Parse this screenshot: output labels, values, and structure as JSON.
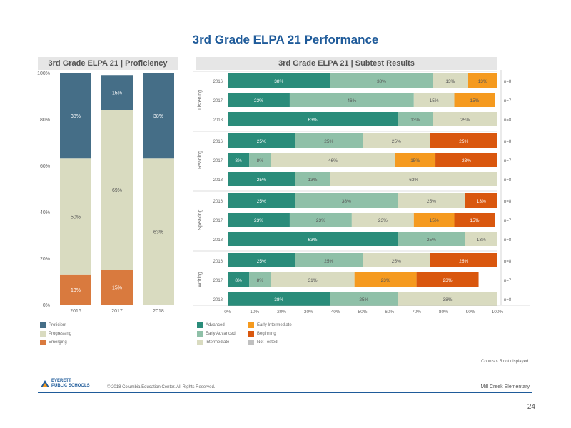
{
  "page": {
    "title": "3rd Grade ELPA 21 Performance",
    "page_number": "24",
    "counts_note": "Counts < 5 not displayed.",
    "copyright": "© 2018 Columbia Education Center. All Rights Reserved.",
    "school": "Mill Creek Elementary",
    "logo_line1": "EVERETT",
    "logo_line2": "PUBLIC SCHOOLS"
  },
  "colors": {
    "proficient": "#456e87",
    "progressing": "#d9dbc0",
    "emerging": "#d97a3e",
    "advanced": "#2a8c7a",
    "early_advanced": "#8fc0a8",
    "intermediate": "#d9dbc0",
    "early_intermediate": "#f59a1f",
    "beginning": "#d9570e",
    "not_tested": "#c0c0c0"
  },
  "left": {
    "title": "3rd Grade ELPA 21 | Proficiency",
    "legend": [
      "Proficient",
      "Progressing",
      "Emerging"
    ]
  },
  "right": {
    "title": "3rd Grade ELPA 21 | Subtest Results",
    "legend": [
      "Advanced",
      "Early Advanced",
      "Intermediate",
      "Early Intermediate",
      "Beginning",
      "Not Tested"
    ]
  },
  "chart_data": [
    {
      "type": "bar",
      "title": "3rd Grade ELPA 21 | Proficiency",
      "categories": [
        "2016",
        "2017",
        "2018"
      ],
      "ylim": [
        0,
        100
      ],
      "yticks": [
        "0%",
        "20%",
        "40%",
        "60%",
        "80%",
        "100%"
      ],
      "series": [
        {
          "name": "Emerging",
          "values": [
            13,
            15,
            0
          ],
          "labels": [
            "13%",
            "15%",
            ""
          ]
        },
        {
          "name": "Progressing",
          "values": [
            50,
            69,
            63
          ],
          "labels": [
            "50%",
            "69%",
            "63%"
          ]
        },
        {
          "name": "Proficient",
          "values": [
            38,
            15,
            38
          ],
          "labels": [
            "38%",
            "15%",
            "38%"
          ]
        }
      ]
    },
    {
      "type": "bar",
      "orientation": "horizontal",
      "title": "3rd Grade ELPA 21 | Subtest Results",
      "xlim": [
        0,
        100
      ],
      "xticks": [
        "0%",
        "10%",
        "20%",
        "30%",
        "40%",
        "50%",
        "60%",
        "70%",
        "80%",
        "90%",
        "100%"
      ],
      "groups": [
        {
          "name": "Listening",
          "rows": [
            {
              "year": "2016",
              "n": "n=8",
              "values": [
                38,
                38,
                13,
                13,
                0
              ],
              "labels": [
                "38%",
                "38%",
                "13%",
                "13%",
                ""
              ]
            },
            {
              "year": "2017",
              "n": "n=7",
              "values": [
                23,
                46,
                15,
                15,
                0
              ],
              "labels": [
                "23%",
                "46%",
                "15%",
                "15%",
                ""
              ]
            },
            {
              "year": "2018",
              "n": "n=8",
              "values": [
                63,
                13,
                25,
                0,
                0
              ],
              "labels": [
                "63%",
                "13%",
                "25%",
                "",
                ""
              ]
            }
          ]
        },
        {
          "name": "Reading",
          "rows": [
            {
              "year": "2016",
              "n": "n=8",
              "values": [
                25,
                25,
                25,
                0,
                25
              ],
              "labels": [
                "25%",
                "25%",
                "25%",
                "",
                "25%"
              ]
            },
            {
              "year": "2017",
              "n": "n=7",
              "values": [
                8,
                8,
                46,
                15,
                23
              ],
              "labels": [
                "8%",
                "8%",
                "46%",
                "15%",
                "23%"
              ]
            },
            {
              "year": "2018",
              "n": "n=8",
              "values": [
                25,
                13,
                63,
                0,
                0
              ],
              "labels": [
                "25%",
                "13%",
                "63%",
                "",
                ""
              ]
            }
          ]
        },
        {
          "name": "Speaking",
          "rows": [
            {
              "year": "2016",
              "n": "n=8",
              "values": [
                25,
                38,
                25,
                0,
                13
              ],
              "labels": [
                "25%",
                "38%",
                "25%",
                "",
                "13%"
              ]
            },
            {
              "year": "2017",
              "n": "n=7",
              "values": [
                23,
                23,
                23,
                15,
                15
              ],
              "labels": [
                "23%",
                "23%",
                "23%",
                "15%",
                "15%"
              ]
            },
            {
              "year": "2018",
              "n": "n=8",
              "values": [
                63,
                25,
                13,
                0,
                0
              ],
              "labels": [
                "63%",
                "25%",
                "13%",
                "",
                ""
              ]
            }
          ]
        },
        {
          "name": "Writing",
          "rows": [
            {
              "year": "2016",
              "n": "n=8",
              "values": [
                25,
                25,
                25,
                0,
                25
              ],
              "labels": [
                "25%",
                "25%",
                "25%",
                "",
                "25%"
              ]
            },
            {
              "year": "2017",
              "n": "n=7",
              "values": [
                8,
                8,
                31,
                23,
                23
              ],
              "labels": [
                "8%",
                "8%",
                "31%",
                "23%",
                "23%"
              ]
            },
            {
              "year": "2018",
              "n": "n=8",
              "values": [
                38,
                25,
                38,
                0,
                0
              ],
              "labels": [
                "38%",
                "25%",
                "38%",
                "",
                ""
              ]
            }
          ]
        }
      ],
      "series_names": [
        "Advanced",
        "Early Advanced",
        "Intermediate",
        "Early Intermediate",
        "Beginning"
      ]
    }
  ]
}
